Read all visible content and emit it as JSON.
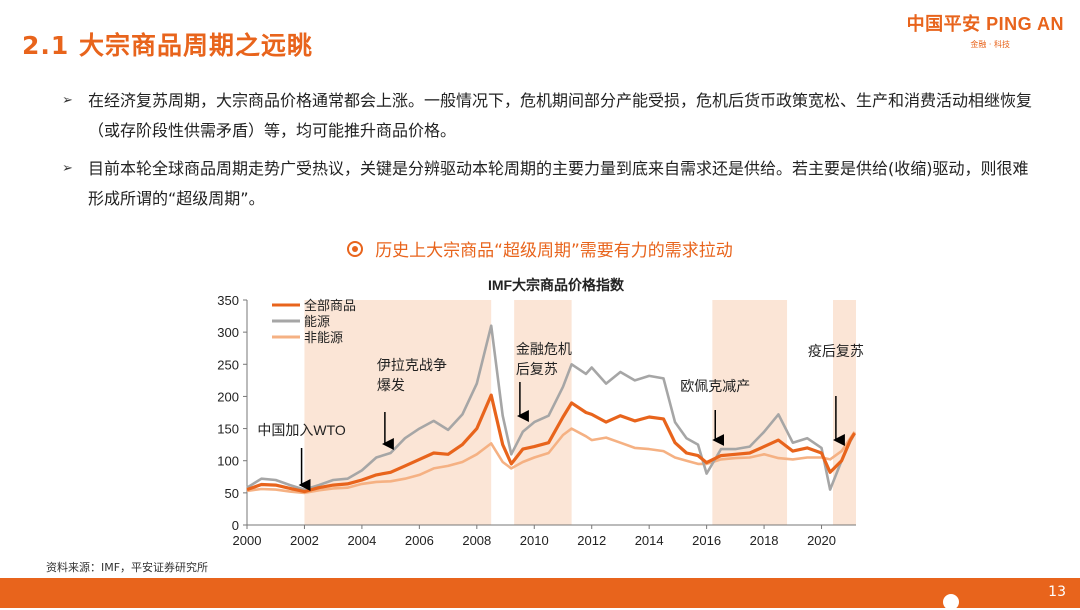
{
  "header": {
    "title": "2.1 大宗商品周期之远眺",
    "logo_main": "中国平安 PING AN",
    "logo_sub": "金融 · 科技"
  },
  "bullets": [
    {
      "mark": "➢",
      "text": "在经济复苏周期，大宗商品价格通常都会上涨。一般情况下，危机期间部分产能受损，危机后货币政策宽松、生产和消费活动相继恢复（或存阶段性供需矛盾）等，均可能推升商品价格。"
    },
    {
      "mark": "➢",
      "text": "目前本轮全球商品周期走势广受热议，关键是分辨驱动本轮周期的主要力量到底来自需求还是供给。若主要是供给(收缩)驱动，则很难形成所谓的“超级周期”。"
    }
  ],
  "subtitle": "历史上大宗商品“超级周期”需要有力的需求拉动",
  "chart_data": {
    "type": "line",
    "title": "IMF大宗商品价格指数",
    "xlabel": "",
    "ylabel": "",
    "xlim": [
      2000,
      2021.2
    ],
    "ylim": [
      0,
      350
    ],
    "x_ticks": [
      2000,
      2002,
      2004,
      2006,
      2008,
      2010,
      2012,
      2014,
      2016,
      2018,
      2020
    ],
    "y_ticks": [
      0,
      50,
      100,
      150,
      200,
      250,
      300,
      350
    ],
    "legend_position": "top-left",
    "series": [
      {
        "name": "全部商品",
        "color": "#e8641c",
        "points": [
          [
            2000,
            55
          ],
          [
            2000.5,
            63
          ],
          [
            2001,
            62
          ],
          [
            2001.5,
            57
          ],
          [
            2002,
            52
          ],
          [
            2002.5,
            58
          ],
          [
            2003,
            62
          ],
          [
            2003.5,
            64
          ],
          [
            2004,
            70
          ],
          [
            2004.5,
            78
          ],
          [
            2005,
            82
          ],
          [
            2005.5,
            92
          ],
          [
            2006,
            102
          ],
          [
            2006.5,
            112
          ],
          [
            2007,
            110
          ],
          [
            2007.5,
            125
          ],
          [
            2008,
            150
          ],
          [
            2008.5,
            202
          ],
          [
            2008.9,
            125
          ],
          [
            2009.2,
            95
          ],
          [
            2009.6,
            118
          ],
          [
            2010,
            122
          ],
          [
            2010.5,
            128
          ],
          [
            2011,
            168
          ],
          [
            2011.3,
            190
          ],
          [
            2011.8,
            175
          ],
          [
            2012,
            172
          ],
          [
            2012.5,
            160
          ],
          [
            2013,
            170
          ],
          [
            2013.5,
            162
          ],
          [
            2014,
            168
          ],
          [
            2014.5,
            165
          ],
          [
            2014.9,
            128
          ],
          [
            2015.3,
            112
          ],
          [
            2015.7,
            108
          ],
          [
            2016,
            97
          ],
          [
            2016.5,
            108
          ],
          [
            2017,
            110
          ],
          [
            2017.5,
            112
          ],
          [
            2018,
            122
          ],
          [
            2018.5,
            132
          ],
          [
            2019,
            115
          ],
          [
            2019.5,
            120
          ],
          [
            2020,
            112
          ],
          [
            2020.3,
            82
          ],
          [
            2020.7,
            100
          ],
          [
            2021,
            132
          ],
          [
            2021.15,
            143
          ]
        ]
      },
      {
        "name": "能源",
        "color": "#a6a6a6",
        "points": [
          [
            2000,
            58
          ],
          [
            2000.5,
            72
          ],
          [
            2001,
            70
          ],
          [
            2001.5,
            62
          ],
          [
            2002,
            55
          ],
          [
            2002.5,
            62
          ],
          [
            2003,
            70
          ],
          [
            2003.5,
            72
          ],
          [
            2004,
            85
          ],
          [
            2004.5,
            105
          ],
          [
            2005,
            112
          ],
          [
            2005.5,
            135
          ],
          [
            2006,
            150
          ],
          [
            2006.5,
            162
          ],
          [
            2007,
            148
          ],
          [
            2007.5,
            172
          ],
          [
            2008,
            220
          ],
          [
            2008.5,
            310
          ],
          [
            2008.9,
            170
          ],
          [
            2009.2,
            110
          ],
          [
            2009.6,
            145
          ],
          [
            2010,
            160
          ],
          [
            2010.5,
            170
          ],
          [
            2011,
            215
          ],
          [
            2011.3,
            250
          ],
          [
            2011.8,
            235
          ],
          [
            2012,
            245
          ],
          [
            2012.5,
            220
          ],
          [
            2013,
            238
          ],
          [
            2013.5,
            225
          ],
          [
            2014,
            232
          ],
          [
            2014.5,
            228
          ],
          [
            2014.9,
            160
          ],
          [
            2015.3,
            135
          ],
          [
            2015.7,
            125
          ],
          [
            2016,
            80
          ],
          [
            2016.5,
            118
          ],
          [
            2017,
            118
          ],
          [
            2017.5,
            122
          ],
          [
            2018,
            145
          ],
          [
            2018.5,
            172
          ],
          [
            2019,
            128
          ],
          [
            2019.5,
            135
          ],
          [
            2020,
            120
          ],
          [
            2020.3,
            55
          ],
          [
            2020.7,
            100
          ],
          [
            2021,
            130
          ],
          [
            2021.15,
            142
          ]
        ]
      },
      {
        "name": "非能源",
        "color": "#f5b183",
        "points": [
          [
            2000,
            53
          ],
          [
            2000.5,
            56
          ],
          [
            2001,
            55
          ],
          [
            2001.5,
            52
          ],
          [
            2002,
            50
          ],
          [
            2002.5,
            54
          ],
          [
            2003,
            57
          ],
          [
            2003.5,
            58
          ],
          [
            2004,
            64
          ],
          [
            2004.5,
            67
          ],
          [
            2005,
            68
          ],
          [
            2005.5,
            72
          ],
          [
            2006,
            78
          ],
          [
            2006.5,
            88
          ],
          [
            2007,
            92
          ],
          [
            2007.5,
            98
          ],
          [
            2008,
            110
          ],
          [
            2008.5,
            127
          ],
          [
            2008.9,
            98
          ],
          [
            2009.2,
            88
          ],
          [
            2009.6,
            98
          ],
          [
            2010,
            105
          ],
          [
            2010.5,
            112
          ],
          [
            2011,
            140
          ],
          [
            2011.3,
            150
          ],
          [
            2011.8,
            138
          ],
          [
            2012,
            132
          ],
          [
            2012.5,
            136
          ],
          [
            2013,
            128
          ],
          [
            2013.5,
            120
          ],
          [
            2014,
            118
          ],
          [
            2014.5,
            115
          ],
          [
            2014.9,
            105
          ],
          [
            2015.3,
            100
          ],
          [
            2015.7,
            95
          ],
          [
            2016,
            95
          ],
          [
            2016.5,
            102
          ],
          [
            2017,
            104
          ],
          [
            2017.5,
            105
          ],
          [
            2018,
            110
          ],
          [
            2018.5,
            104
          ],
          [
            2019,
            102
          ],
          [
            2019.5,
            105
          ],
          [
            2020,
            105
          ],
          [
            2020.3,
            102
          ],
          [
            2020.7,
            115
          ],
          [
            2021,
            135
          ],
          [
            2021.15,
            145
          ]
        ]
      }
    ],
    "shaded_periods": [
      [
        2002,
        2008.5
      ],
      [
        2009.3,
        2011.3
      ],
      [
        2016.2,
        2018.8
      ],
      [
        2020.4,
        2021.2
      ]
    ],
    "annotations": [
      {
        "text": "中国加入WTO",
        "x": 2001.9,
        "arrow_y": 55
      },
      {
        "text": "伊拉克战争\n爆发",
        "x": 2004.8,
        "arrow_y": 125
      },
      {
        "text": "金融危机\n后复苏",
        "x": 2009.5,
        "arrow_y": 160
      },
      {
        "text": "欧佩克减产",
        "x": 2016.3,
        "arrow_y": 128
      },
      {
        "text": "疫后复苏",
        "x": 2020.5,
        "arrow_y": 135
      }
    ]
  },
  "source": "资料来源：IMF，平安证券研究所",
  "page_number": "13",
  "colors": {
    "accent": "#e8641c",
    "shade": "#fbe5d6"
  }
}
